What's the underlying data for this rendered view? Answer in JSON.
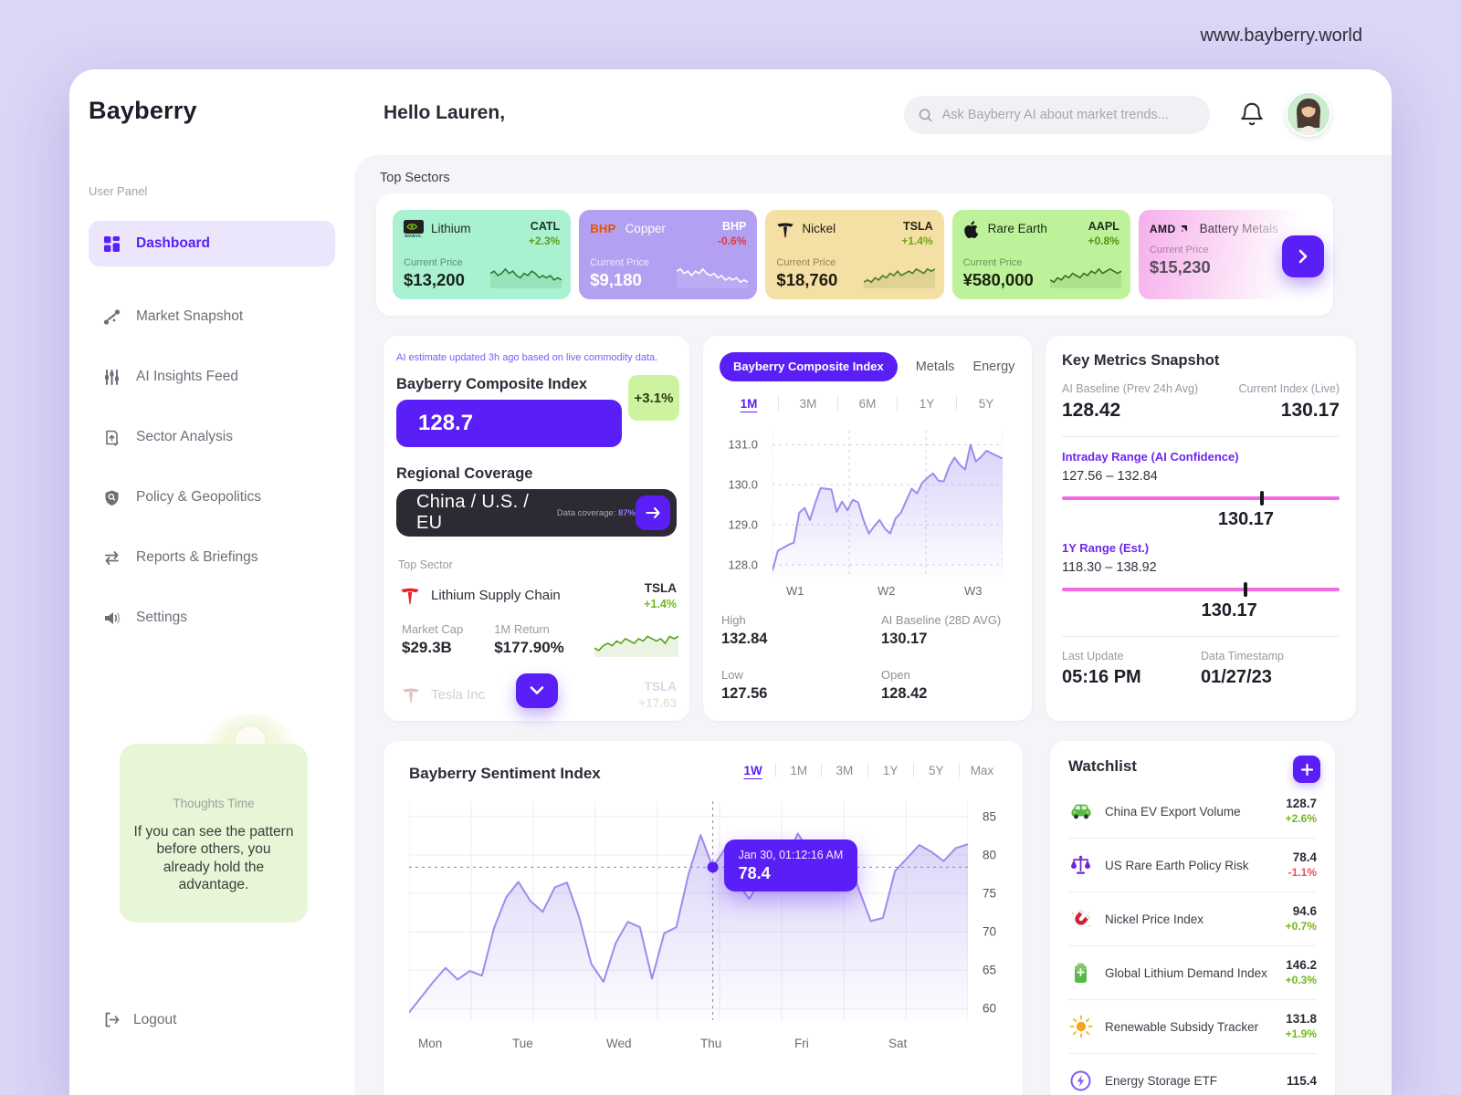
{
  "page": {
    "url": "www.bayberry.world"
  },
  "brand": {
    "name": "Bayberry"
  },
  "header": {
    "greeting": "Hello Lauren,",
    "search_placeholder": "Ask Bayberry AI about market trends..."
  },
  "sidebar": {
    "section_label": "User Panel",
    "items": [
      {
        "label": "Dashboard"
      },
      {
        "label": "Market Snapshot"
      },
      {
        "label": "AI Insights Feed"
      },
      {
        "label": "Sector Analysis"
      },
      {
        "label": "Policy & Geopolitics"
      },
      {
        "label": "Reports & Briefings"
      },
      {
        "label": "Settings"
      }
    ],
    "thoughts": {
      "label": "Thoughts Time",
      "quote": "If you can see the pattern before others, you already hold the advantage."
    },
    "logout": "Logout"
  },
  "top_sectors": {
    "title": "Top Sectors",
    "cards": [
      {
        "name": "Lithium",
        "logo": "nvidia",
        "ticker": "CATL",
        "change": "+2.3%",
        "dir": "up",
        "price_label": "Current Price",
        "price": "$13,200",
        "bg": "#a9f1d0",
        "spark": [
          6,
          7,
          5,
          6,
          8,
          6,
          7,
          5,
          4,
          6,
          5,
          7,
          6,
          4,
          5,
          4,
          5,
          3,
          4,
          3
        ],
        "spark_color": "#2f7d32"
      },
      {
        "name": "Copper",
        "logo": "bhp",
        "ticker": "BHP",
        "change": "-0.6%",
        "dir": "down",
        "price_label": "Current Price",
        "price": "$9,180",
        "bg": "#b3a0f2",
        "spark": [
          7,
          8,
          6,
          7,
          5,
          7,
          6,
          8,
          6,
          5,
          6,
          4,
          5,
          3,
          4,
          3,
          4,
          2,
          3,
          2
        ],
        "spark_color": "#ffffff"
      },
      {
        "name": "Nickel",
        "logo": "tesla",
        "ticker": "TSLA",
        "change": "+1.4%",
        "dir": "up",
        "price_label": "Current Price",
        "price": "$18,760",
        "bg": "#f4dfa4",
        "spark": [
          2,
          3,
          2,
          4,
          3,
          5,
          4,
          6,
          5,
          7,
          5,
          6,
          7,
          6,
          8,
          7,
          6,
          8,
          7,
          8
        ],
        "spark_color": "#4a7d1f"
      },
      {
        "name": "Rare Earth",
        "logo": "apple",
        "ticker": "AAPL",
        "change": "+0.8%",
        "dir": "up",
        "price_label": "Current Price",
        "price": "¥580,000",
        "bg": "#bdf29b",
        "spark": [
          3,
          2,
          4,
          3,
          5,
          4,
          6,
          5,
          4,
          6,
          5,
          7,
          6,
          8,
          6,
          7,
          8,
          7,
          6,
          7
        ],
        "spark_color": "#3f6d1f"
      },
      {
        "name": "Battery Metals",
        "logo": "amd",
        "ticker": "",
        "change": "",
        "dir": "up",
        "price_label": "Current Price",
        "price": "$15,230",
        "bg": "gradient",
        "spark": [],
        "spark_color": ""
      }
    ]
  },
  "composite": {
    "note": "AI estimate updated 3h ago based on live commodity data.",
    "title": "Bayberry Composite Index",
    "value": "128.7",
    "change_badge": "+3.1%",
    "regional_title": "Regional Coverage",
    "regions": "China / U.S. / EU",
    "coverage_label": "Data coverage:",
    "coverage_value": "87%",
    "top_sector_label": "Top Sector",
    "sector": {
      "name": "Lithium Supply Chain",
      "ticker": "TSLA",
      "change": "+1.4%",
      "market_cap_label": "Market Cap",
      "market_cap": "$29.3B",
      "return_label": "1M Return",
      "return_value": "$177.90%",
      "spark": [
        3,
        2,
        4,
        5,
        4,
        6,
        5,
        7,
        6,
        5,
        7,
        6,
        8,
        7,
        6,
        7,
        5,
        8,
        7,
        8
      ],
      "spark_color": "#57a015"
    },
    "next_row": {
      "company": "Tesla Inc",
      "ticker": "TSLA",
      "change": "+17.63"
    }
  },
  "index_chart": {
    "tabs": [
      "Bayberry Composite Index",
      "Metals",
      "Energy"
    ],
    "ranges": [
      "1M",
      "3M",
      "6M",
      "1Y",
      "5Y"
    ],
    "active_range": "1M",
    "chart_data": {
      "type": "area",
      "x_labels": [
        "W1",
        "W2",
        "W3"
      ],
      "y_ticks": [
        131.0,
        130.0,
        129.0,
        128.0
      ],
      "ylim": [
        127.7,
        131.35
      ],
      "values": [
        127.85,
        128.35,
        128.42,
        128.5,
        128.55,
        129.3,
        129.42,
        129.12,
        129.55,
        129.92,
        129.9,
        129.88,
        129.32,
        129.58,
        129.36,
        129.62,
        129.56,
        129.12,
        128.78,
        128.96,
        129.12,
        128.9,
        128.78,
        129.16,
        129.3,
        129.6,
        129.9,
        129.78,
        130.05,
        130.18,
        130.28,
        130.1,
        130.08,
        130.45,
        130.68,
        130.5,
        130.38,
        131.0,
        130.58,
        130.7,
        130.85,
        130.78,
        130.72,
        130.65
      ]
    },
    "stats": [
      {
        "label": "High",
        "value": "132.84"
      },
      {
        "label": "AI Baseline (28D AVG)",
        "value": "130.17"
      },
      {
        "label": "Low",
        "value": "127.56"
      },
      {
        "label": "Open",
        "value": "128.42"
      }
    ]
  },
  "key_metrics": {
    "title": "Key Metrics Snapshot",
    "baseline_label": "AI Baseline (Prev 24h Avg)",
    "baseline_value": "128.42",
    "current_label": "Current Index (Live)",
    "current_value": "130.17",
    "intraday": {
      "label": "Intraday Range (AI Confidence)",
      "range": "127.56 – 132.84",
      "marker_value": "130.17",
      "marker_pos": 0.72
    },
    "yearly": {
      "label": "1Y Range (Est.)",
      "range": "118.30 – 138.92",
      "marker_value": "130.17",
      "marker_pos": 0.66
    },
    "last_update_label": "Last Update",
    "last_update": "05:16 PM",
    "timestamp_label": "Data Timestamp",
    "timestamp": "01/27/23"
  },
  "sentiment": {
    "title": "Bayberry Sentiment Index",
    "ranges": [
      "1W",
      "1M",
      "3M",
      "1Y",
      "5Y",
      "Max"
    ],
    "active_range": "1W",
    "tooltip": {
      "time": "Jan 30, 01:12:16 AM",
      "value": "78.4"
    },
    "chart_data": {
      "type": "area",
      "x_labels": [
        "Mon",
        "Tue",
        "Wed",
        "Thu",
        "Fri",
        "Sat"
      ],
      "y_ticks": [
        85,
        80,
        75,
        70,
        65,
        60
      ],
      "ylim": [
        58.5,
        87
      ],
      "highlight_index": 25,
      "values": [
        59.5,
        61.5,
        63.5,
        65.3,
        63.8,
        64.9,
        64.3,
        70.5,
        74.5,
        76.5,
        74.0,
        72.6,
        75.8,
        76.4,
        71.9,
        65.8,
        63.5,
        68.5,
        71.3,
        70.6,
        63.9,
        69.8,
        70.6,
        77.5,
        82.6,
        78.4,
        80.8,
        76.4,
        74.3,
        76.8,
        80.9,
        79.2,
        82.8,
        80.3,
        81.6,
        79.6,
        80.1,
        75.6,
        71.4,
        71.8,
        77.9,
        79.6,
        81.3,
        80.4,
        79.2,
        80.9,
        81.4
      ]
    }
  },
  "watchlist": {
    "title": "Watchlist",
    "items": [
      {
        "icon": "car",
        "name": "China EV Export Volume",
        "value": "128.7",
        "change": "+2.6%",
        "dir": "up"
      },
      {
        "icon": "scales",
        "name": "US Rare Earth Policy Risk",
        "value": "78.4",
        "change": "-1.1%",
        "dir": "down"
      },
      {
        "icon": "magnet",
        "name": "Nickel Price Index",
        "value": "94.6",
        "change": "+0.7%",
        "dir": "up"
      },
      {
        "icon": "battery",
        "name": "Global Lithium Demand Index",
        "value": "146.2",
        "change": "+0.3%",
        "dir": "up"
      },
      {
        "icon": "sun",
        "name": "Renewable Subsidy Tracker",
        "value": "131.8",
        "change": "+1.9%",
        "dir": "up"
      },
      {
        "icon": "storage",
        "name": "Energy Storage ETF",
        "value": "115.4",
        "change": "",
        "dir": "up"
      }
    ]
  },
  "colors": {
    "accent": "#5a1ef6",
    "positive": "#74b816",
    "negative": "#e8505b",
    "pink": "#f36ae4",
    "line": "#9f8bee"
  }
}
